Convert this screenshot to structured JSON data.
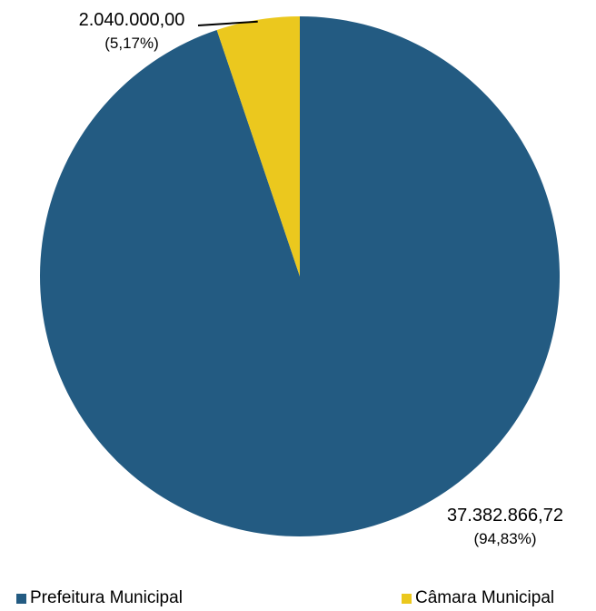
{
  "chart_data": {
    "type": "pie",
    "title": "",
    "slices": [
      {
        "label": "Prefeitura Municipal",
        "value": 37382866.72,
        "value_label": "37.382.866,72",
        "percent_label": "(94,83%)",
        "color": "#235B82"
      },
      {
        "label": "Câmara Municipal",
        "value": 2040000.0,
        "value_label": "2.040.000,00",
        "percent_label": "(5,17%)",
        "color": "#EBC81E"
      }
    ],
    "legend_position": "bottom"
  }
}
